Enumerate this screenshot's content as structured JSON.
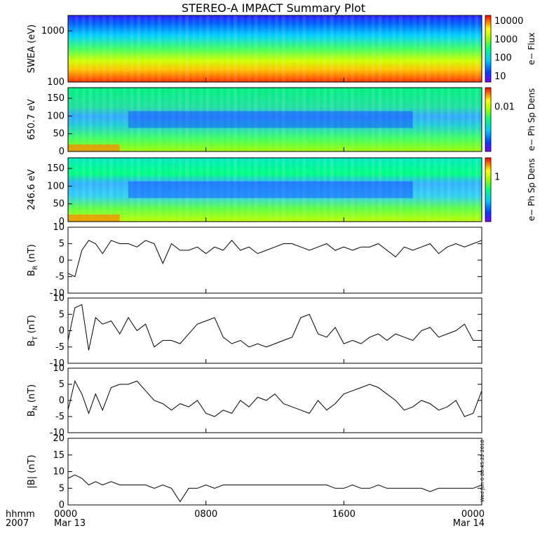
{
  "title": "STEREO-A IMPACT Summary Plot",
  "footer": {
    "time_label": "hhmm",
    "year_label": "2007",
    "timestamp": "Wed Jun  6 08:45:22 2010"
  },
  "colors": {
    "spectrogram_scale": [
      "#7a00ff",
      "#0040ff",
      "#00c8ff",
      "#00ff80",
      "#a0ff00",
      "#ffff00",
      "#ff8000",
      "#ff0000"
    ],
    "line": "#000000",
    "frame": "#000000"
  },
  "chart_data": [
    {
      "type": "heatmap",
      "ylabel": "SWEA (eV)",
      "y_scale": "log",
      "ylim": [
        100,
        2000
      ],
      "yticks": [
        "1000",
        "100"
      ],
      "colorbar": {
        "label": "e− Flux",
        "scale": "log",
        "ticks": [
          "10000",
          "1000",
          "100",
          "10"
        ]
      },
      "description_rows": "energy vs time; flux decreases with energy"
    },
    {
      "type": "heatmap",
      "ylabel": "650.7 eV",
      "ylim": [
        0,
        180
      ],
      "yticks": [
        "150",
        "100",
        "50",
        "0"
      ],
      "colorbar": {
        "label": "e− Ph Sp Dens",
        "ticks": [
          "0.01"
        ]
      }
    },
    {
      "type": "heatmap",
      "ylabel": "246.6 eV",
      "ylim": [
        0,
        180
      ],
      "yticks": [
        "150",
        "100",
        "50",
        "0"
      ],
      "colorbar": {
        "label": "e− Ph Sp Dens",
        "ticks": [
          "1"
        ]
      }
    },
    {
      "type": "line",
      "ylabel": "B_R (nT)",
      "ylim": [
        -10,
        10
      ],
      "yticks": [
        "10",
        "5",
        "0",
        "-5",
        "-10"
      ],
      "x": [
        0,
        0.4,
        0.8,
        1.2,
        1.6,
        2,
        2.5,
        3,
        3.5,
        4,
        4.5,
        5,
        5.5,
        6,
        6.5,
        7,
        7.5,
        8,
        8.5,
        9,
        9.5,
        10,
        10.5,
        11,
        11.5,
        12,
        12.5,
        13,
        13.5,
        14,
        14.5,
        15,
        15.5,
        16,
        16.5,
        17,
        17.5,
        18,
        18.5,
        19,
        19.5,
        20,
        20.5,
        21,
        21.5,
        22,
        22.5,
        23,
        23.5,
        24
      ],
      "y": [
        -4,
        -5,
        3,
        6,
        5,
        2,
        6,
        5,
        5,
        4,
        6,
        5,
        -1,
        5,
        3,
        3,
        4,
        2,
        4,
        3,
        6,
        3,
        4,
        2,
        3,
        4,
        5,
        5,
        4,
        3,
        4,
        5,
        3,
        4,
        3,
        4,
        4,
        5,
        3,
        1,
        4,
        3,
        4,
        5,
        2,
        4,
        5,
        4,
        5,
        6
      ]
    },
    {
      "type": "line",
      "ylabel": "B_T (nT)",
      "ylim": [
        -10,
        10
      ],
      "yticks": [
        "10",
        "5",
        "0",
        "-5",
        "-10"
      ],
      "x": [
        0,
        0.4,
        0.8,
        1.2,
        1.6,
        2,
        2.5,
        3,
        3.5,
        4,
        4.5,
        5,
        5.5,
        6,
        6.5,
        7,
        7.5,
        8,
        8.5,
        9,
        9.5,
        10,
        10.5,
        11,
        11.5,
        12,
        12.5,
        13,
        13.5,
        14,
        14.5,
        15,
        15.5,
        16,
        16.5,
        17,
        17.5,
        18,
        18.5,
        19,
        19.5,
        20,
        20.5,
        21,
        21.5,
        22,
        22.5,
        23,
        23.5,
        24
      ],
      "y": [
        -3,
        7,
        8,
        -6,
        4,
        2,
        3,
        -1,
        4,
        0,
        2,
        -5,
        -3,
        -3,
        -4,
        -1,
        2,
        3,
        4,
        -2,
        -4,
        -3,
        -5,
        -4,
        -5,
        -4,
        -3,
        -2,
        4,
        5,
        -1,
        -2,
        1,
        -4,
        -3,
        -4,
        -2,
        -1,
        -3,
        -1,
        -2,
        -3,
        0,
        1,
        -2,
        -1,
        0,
        2,
        -3,
        -3
      ]
    },
    {
      "type": "line",
      "ylabel": "B_N (nT)",
      "ylim": [
        -10,
        10
      ],
      "yticks": [
        "10",
        "5",
        "0",
        "-5",
        "-10"
      ],
      "x": [
        0,
        0.4,
        0.8,
        1.2,
        1.6,
        2,
        2.5,
        3,
        3.5,
        4,
        4.5,
        5,
        5.5,
        6,
        6.5,
        7,
        7.5,
        8,
        8.5,
        9,
        9.5,
        10,
        10.5,
        11,
        11.5,
        12,
        12.5,
        13,
        13.5,
        14,
        14.5,
        15,
        15.5,
        16,
        16.5,
        17,
        17.5,
        18,
        18.5,
        19,
        19.5,
        20,
        20.5,
        21,
        21.5,
        22,
        22.5,
        23,
        23.5,
        24
      ],
      "y": [
        -3,
        6,
        2,
        -4,
        2,
        -3,
        4,
        5,
        5,
        6,
        3,
        0,
        -1,
        -3,
        -1,
        -2,
        0,
        -4,
        -5,
        -3,
        -4,
        0,
        -2,
        1,
        0,
        2,
        -1,
        -2,
        -3,
        -4,
        0,
        -3,
        -1,
        2,
        3,
        4,
        5,
        4,
        2,
        0,
        -3,
        -2,
        0,
        -1,
        -3,
        -2,
        0,
        -5,
        -4,
        3
      ]
    },
    {
      "type": "line",
      "ylabel": "|B| (nT)",
      "ylim": [
        0,
        20
      ],
      "yticks": [
        "20",
        "15",
        "10",
        "5",
        "0"
      ],
      "x": [
        0,
        0.4,
        0.8,
        1.2,
        1.6,
        2,
        2.5,
        3,
        3.5,
        4,
        4.5,
        5,
        5.5,
        6,
        6.5,
        7,
        7.5,
        8,
        8.5,
        9,
        9.5,
        10,
        10.5,
        11,
        11.5,
        12,
        12.5,
        13,
        13.5,
        14,
        14.5,
        15,
        15.5,
        16,
        16.5,
        17,
        17.5,
        18,
        18.5,
        19,
        19.5,
        20,
        20.5,
        21,
        21.5,
        22,
        22.5,
        23,
        23.5,
        24
      ],
      "y": [
        8,
        9,
        8,
        6,
        7,
        6,
        7,
        6,
        6,
        6,
        6,
        5,
        6,
        5,
        1,
        5,
        5,
        6,
        5,
        6,
        6,
        6,
        6,
        6,
        6,
        6,
        6,
        6,
        6,
        6,
        6,
        6,
        5,
        5,
        6,
        5,
        5,
        6,
        5,
        5,
        5,
        5,
        5,
        4,
        5,
        5,
        5,
        5,
        5,
        6
      ]
    }
  ],
  "x_axis": {
    "xlim": [
      0,
      24
    ],
    "ticks": [
      {
        "value": 0,
        "time": "0000",
        "date": "Mar 13"
      },
      {
        "value": 8,
        "time": "0800",
        "date": ""
      },
      {
        "value": 16,
        "time": "1600",
        "date": ""
      },
      {
        "value": 24,
        "time": "0000",
        "date": "Mar 14"
      }
    ]
  }
}
